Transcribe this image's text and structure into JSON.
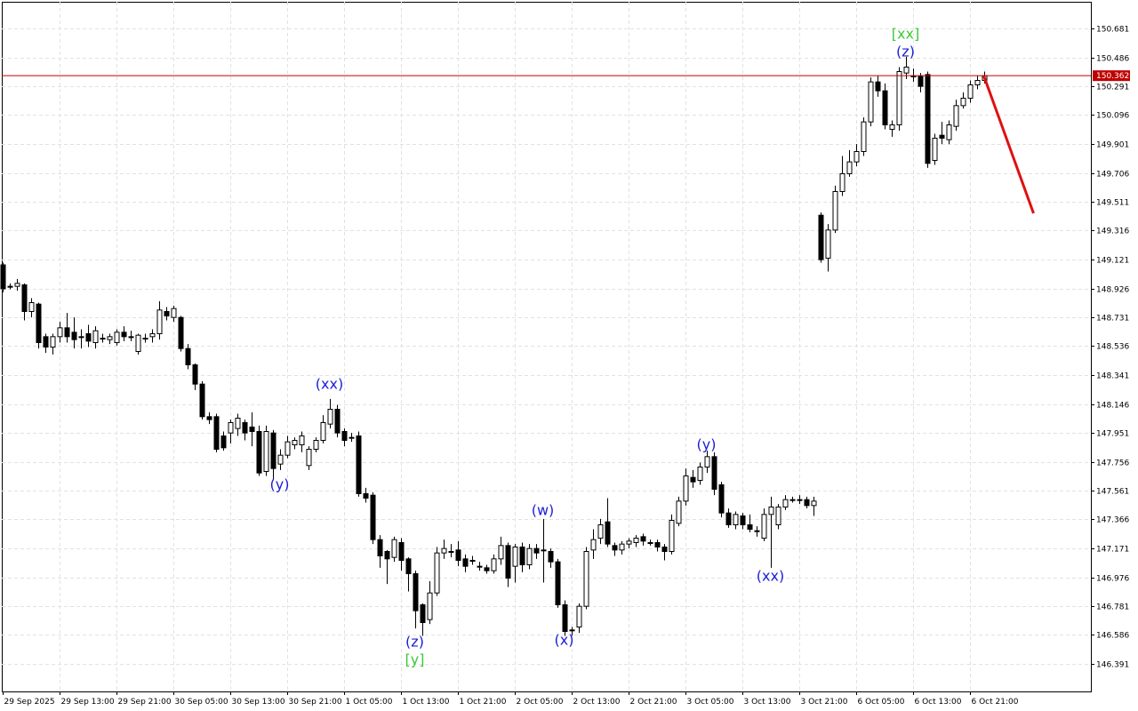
{
  "chart_data": {
    "type": "candlestick",
    "up_color": "#ffffff",
    "down_color": "#000000",
    "grid": true,
    "ylim": [
      146.205,
      150.861
    ],
    "yticks": [
      146.391,
      146.586,
      146.781,
      146.976,
      147.171,
      147.366,
      147.561,
      147.756,
      147.951,
      148.146,
      148.341,
      148.536,
      148.731,
      148.926,
      149.121,
      149.316,
      149.511,
      149.706,
      149.901,
      150.096,
      150.291,
      150.486,
      150.681
    ],
    "categories": [
      "29 Sep 2025",
      null,
      null,
      null,
      null,
      null,
      null,
      null,
      "29 Sep 13:00",
      null,
      null,
      null,
      null,
      null,
      null,
      null,
      "29 Sep 21:00",
      null,
      null,
      null,
      null,
      null,
      null,
      null,
      "30 Sep 05:00",
      null,
      null,
      null,
      null,
      null,
      null,
      null,
      "30 Sep 13:00",
      null,
      null,
      null,
      null,
      null,
      null,
      null,
      "30 Sep 21:00",
      null,
      null,
      null,
      null,
      null,
      null,
      null,
      "1 Oct 05:00",
      null,
      null,
      null,
      null,
      null,
      null,
      null,
      "1 Oct 13:00",
      null,
      null,
      null,
      null,
      null,
      null,
      null,
      "1 Oct 21:00",
      null,
      null,
      null,
      null,
      null,
      null,
      null,
      "2 Oct 05:00",
      null,
      null,
      null,
      null,
      null,
      null,
      null,
      "2 Oct 13:00",
      null,
      null,
      null,
      null,
      null,
      null,
      null,
      "2 Oct 21:00",
      null,
      null,
      null,
      null,
      null,
      null,
      null,
      "3 Oct 05:00",
      null,
      null,
      null,
      null,
      null,
      null,
      null,
      "3 Oct 13:00",
      null,
      null,
      null,
      null,
      null,
      null,
      null,
      "3 Oct 21:00",
      null,
      null,
      null,
      null,
      null,
      null,
      null,
      "6 Oct 05:00",
      null,
      null,
      null,
      null,
      null,
      null,
      null,
      "6 Oct 13:00",
      null,
      null,
      null,
      null,
      null,
      null,
      null,
      "6 Oct 21:00",
      null,
      null
    ],
    "open": [
      149.085,
      148.94,
      148.94,
      148.95,
      148.77,
      148.82,
      148.6,
      148.53,
      148.6,
      148.66,
      148.63,
      148.6,
      148.62,
      148.56,
      148.59,
      148.58,
      148.56,
      148.63,
      148.6,
      148.5,
      148.59,
      148.6,
      148.62,
      148.77,
      148.73,
      148.73,
      148.52,
      148.41,
      148.28,
      148.06,
      148.06,
      147.93,
      147.95,
      147.98,
      148.02,
      147.99,
      147.96,
      147.69,
      147.95,
      147.74,
      147.8,
      147.87,
      147.87,
      147.73,
      147.84,
      147.9,
      148.01,
      148.11,
      147.96,
      147.92,
      147.93,
      147.54,
      147.53,
      147.23,
      147.15,
      147.11,
      147.21,
      147.1,
      147.0,
      146.79,
      146.69,
      146.87,
      147.14,
      147.15,
      147.16,
      147.1,
      147.09,
      147.05,
      147.04,
      147.02,
      147.1,
      147.19,
      147.05,
      147.18,
      147.06,
      147.17,
      147.16,
      147.15,
      147.08,
      146.79,
      146.62,
      146.64,
      146.78,
      147.16,
      147.24,
      147.35,
      147.19,
      147.16,
      147.2,
      147.21,
      147.25,
      147.21,
      147.21,
      147.18,
      147.15,
      147.34,
      147.49,
      147.65,
      147.63,
      147.72,
      147.79,
      147.6,
      147.41,
      147.33,
      147.39,
      147.33,
      147.29,
      147.24,
      147.4,
      147.33,
      147.45,
      147.5,
      147.5,
      147.5,
      147.46,
      149.42,
      149.13,
      149.32,
      149.58,
      149.7,
      149.78,
      149.85,
      150.05,
      150.32,
      150.26,
      150.0,
      150.03,
      150.38,
      150.36,
      150.36,
      150.37,
      149.79,
      149.96,
      149.93,
      150.02,
      150.16,
      150.21,
      150.3,
      150.33
    ],
    "high": [
      149.1,
      148.96,
      148.99,
      148.96,
      148.86,
      148.83,
      148.62,
      148.62,
      148.7,
      148.76,
      148.73,
      148.65,
      148.68,
      148.67,
      148.62,
      148.62,
      148.65,
      148.67,
      148.64,
      148.62,
      148.62,
      148.65,
      148.84,
      148.8,
      148.81,
      148.74,
      148.55,
      148.42,
      148.3,
      148.09,
      148.08,
      147.96,
      148.04,
      148.08,
      148.04,
      148.09,
      148.0,
      148.0,
      147.97,
      147.84,
      147.93,
      147.92,
      147.96,
      147.86,
      147.92,
      148.07,
      148.18,
      148.14,
      147.98,
      147.95,
      147.96,
      147.58,
      147.55,
      147.26,
      147.16,
      147.25,
      147.24,
      147.11,
      147.02,
      146.8,
      146.95,
      147.18,
      147.23,
      147.2,
      147.22,
      147.13,
      147.12,
      147.08,
      147.06,
      147.13,
      147.25,
      147.21,
      147.2,
      147.21,
      147.2,
      147.2,
      147.37,
      147.17,
      147.1,
      146.82,
      146.64,
      146.8,
      147.18,
      147.3,
      147.37,
      147.51,
      147.21,
      147.22,
      147.24,
      147.26,
      147.27,
      147.23,
      147.23,
      147.2,
      147.4,
      147.52,
      147.71,
      147.7,
      147.75,
      147.83,
      147.82,
      147.62,
      147.44,
      147.42,
      147.41,
      147.4,
      147.32,
      147.44,
      147.52,
      147.47,
      147.53,
      147.52,
      147.53,
      147.52,
      147.52,
      149.44,
      149.36,
      149.62,
      149.82,
      149.86,
      149.9,
      150.08,
      150.35,
      150.36,
      150.31,
      150.06,
      150.42,
      150.49,
      150.41,
      150.38,
      150.39,
      149.97,
      150.05,
      150.06,
      150.2,
      150.25,
      150.33,
      150.36,
      150.39
    ],
    "low": [
      148.9,
      148.92,
      148.91,
      148.71,
      148.73,
      148.52,
      148.49,
      148.48,
      148.56,
      148.56,
      148.52,
      148.52,
      148.53,
      148.52,
      148.56,
      148.55,
      148.54,
      148.57,
      148.57,
      148.48,
      148.56,
      148.56,
      148.58,
      148.71,
      148.7,
      148.5,
      148.38,
      148.24,
      148.04,
      148.01,
      147.82,
      147.83,
      147.88,
      147.93,
      147.9,
      147.86,
      147.66,
      147.66,
      147.63,
      147.7,
      147.78,
      147.84,
      147.82,
      147.7,
      147.82,
      147.88,
      147.98,
      147.92,
      147.86,
      147.89,
      147.52,
      147.48,
      147.2,
      147.04,
      146.93,
      147.08,
      147.02,
      146.88,
      146.63,
      146.58,
      146.66,
      146.85,
      147.1,
      147.11,
      147.05,
      147.01,
      147.06,
      147.02,
      147.0,
      147.0,
      147.06,
      146.91,
      146.94,
      147.01,
      147.03,
      147.1,
      146.94,
      147.04,
      146.77,
      146.58,
      146.58,
      146.6,
      146.76,
      147.1,
      147.2,
      147.18,
      147.12,
      147.13,
      147.17,
      147.18,
      147.19,
      147.19,
      147.15,
      147.09,
      147.13,
      147.32,
      147.46,
      147.58,
      147.6,
      147.68,
      147.53,
      147.38,
      147.31,
      147.3,
      147.3,
      147.28,
      147.25,
      147.22,
      147.04,
      147.3,
      147.43,
      147.48,
      147.47,
      147.44,
      147.39,
      149.1,
      149.04,
      149.3,
      149.55,
      149.68,
      149.75,
      149.82,
      150.02,
      150.22,
      150.0,
      149.95,
      149.99,
      150.34,
      150.32,
      150.25,
      149.74,
      149.76,
      149.9,
      149.9,
      149.99,
      150.14,
      150.18,
      150.27,
      150.31
    ],
    "close": [
      148.923,
      148.94,
      148.96,
      148.77,
      148.83,
      148.56,
      148.53,
      148.6,
      148.66,
      148.6,
      148.58,
      148.6,
      148.57,
      148.64,
      148.59,
      148.6,
      148.63,
      148.6,
      148.6,
      148.61,
      148.59,
      148.62,
      148.78,
      148.74,
      148.79,
      148.52,
      148.41,
      148.28,
      148.06,
      148.04,
      147.84,
      147.85,
      148.02,
      148.05,
      147.95,
      147.96,
      147.68,
      147.96,
      147.71,
      147.8,
      147.89,
      147.9,
      147.93,
      147.84,
      147.9,
      148.02,
      148.11,
      147.95,
      147.9,
      147.92,
      147.54,
      147.51,
      147.23,
      147.12,
      147.1,
      147.23,
      147.09,
      147.0,
      146.75,
      146.67,
      146.87,
      147.14,
      147.17,
      147.15,
      147.09,
      147.05,
      147.09,
      147.05,
      147.02,
      147.1,
      147.19,
      146.97,
      147.18,
      147.06,
      147.17,
      147.14,
      147.16,
      147.08,
      146.79,
      146.61,
      146.62,
      146.78,
      147.15,
      147.23,
      147.33,
      147.2,
      147.16,
      147.2,
      147.22,
      147.24,
      147.22,
      147.21,
      147.18,
      147.15,
      147.36,
      147.49,
      147.66,
      147.62,
      147.72,
      147.79,
      147.57,
      147.41,
      147.33,
      147.4,
      147.33,
      147.3,
      147.29,
      147.4,
      147.45,
      147.45,
      147.5,
      147.5,
      147.5,
      147.46,
      147.49,
      149.12,
      149.32,
      149.58,
      149.7,
      149.78,
      149.85,
      150.05,
      150.32,
      150.26,
      150.03,
      150.03,
      150.39,
      150.42,
      150.36,
      150.29,
      149.77,
      149.94,
      149.94,
      150.03,
      150.16,
      150.21,
      150.3,
      150.33,
      150.362
    ],
    "current_price": 150.362,
    "current_price_color": "#c00000",
    "forecast": {
      "color": "#e01010",
      "x": [
        138,
        145
      ],
      "values": [
        150.362,
        149.433
      ]
    },
    "annotations": [
      {
        "text": "(y)",
        "index": 39,
        "y": 147.597,
        "color": "#1c1cd8"
      },
      {
        "text": "(xx)",
        "index": 46,
        "y": 148.275,
        "color": "#1c1cd8"
      },
      {
        "text": "(z)",
        "index": 58,
        "y": 146.535,
        "color": "#1c1cd8"
      },
      {
        "text": "[y]",
        "index": 58,
        "y": 146.415,
        "color": "#3cc83c"
      },
      {
        "text": "(w)",
        "index": 76,
        "y": 147.423,
        "color": "#1c1cd8"
      },
      {
        "text": "(x)",
        "index": 79,
        "y": 146.547,
        "color": "#1c1cd8"
      },
      {
        "text": "(y)",
        "index": 99,
        "y": 147.867,
        "color": "#1c1cd8"
      },
      {
        "text": "(xx)",
        "index": 108,
        "y": 146.979,
        "color": "#1c1cd8"
      },
      {
        "text": "(z)",
        "index": 127,
        "y": 150.519,
        "color": "#1c1cd8"
      },
      {
        "text": "[xx]",
        "index": 127,
        "y": 150.639,
        "color": "#3cc83c"
      }
    ]
  }
}
